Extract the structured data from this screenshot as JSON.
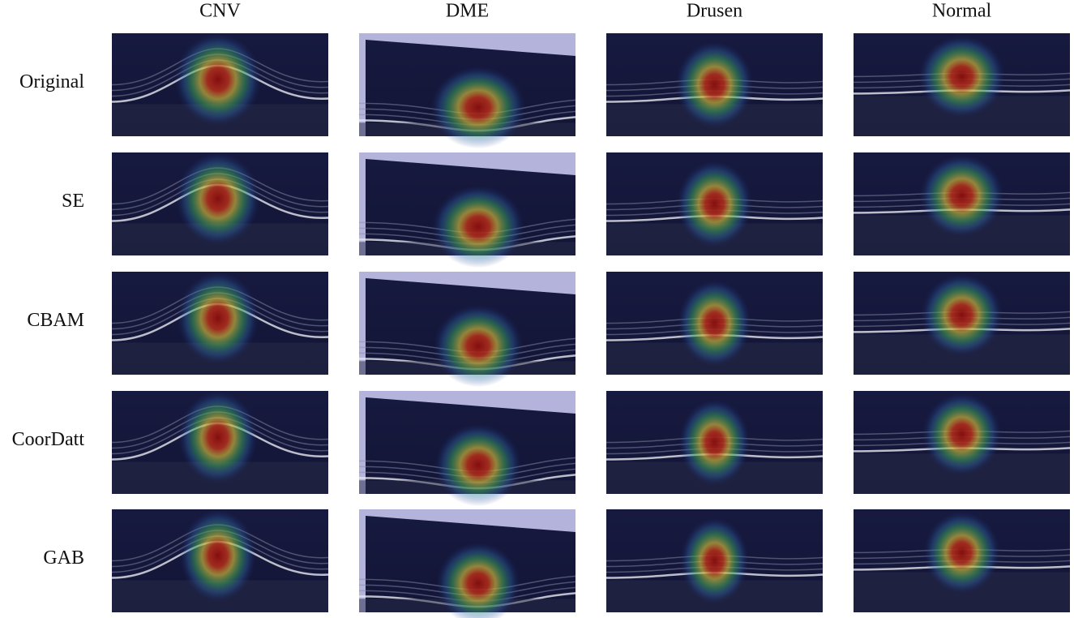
{
  "columns": [
    "CNV",
    "DME",
    "Drusen",
    "Normal"
  ],
  "rows": [
    "Original",
    "SE",
    "CBAM",
    "CoorDatt",
    "GAB"
  ]
}
